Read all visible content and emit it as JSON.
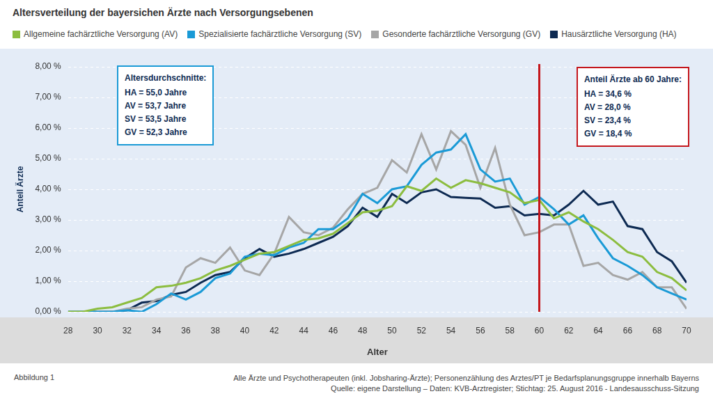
{
  "chart_data": {
    "type": "line",
    "title": "Altersverteilung der bayersichen Ärzte nach Versorgungsebenen",
    "x_label": "Alter",
    "y_label": "Anteil Ärzte",
    "x": [
      28,
      29,
      30,
      31,
      32,
      33,
      34,
      35,
      36,
      37,
      38,
      39,
      40,
      41,
      42,
      43,
      44,
      45,
      46,
      47,
      48,
      49,
      50,
      51,
      52,
      53,
      54,
      55,
      56,
      57,
      58,
      59,
      60,
      61,
      62,
      63,
      64,
      65,
      66,
      67,
      68,
      69,
      70
    ],
    "series": [
      {
        "name": "Allgemeine fachärztliche Versorgung (AV)",
        "color": "#8cbd3f",
        "values": [
          0.0,
          0.0,
          0.1,
          0.15,
          0.3,
          0.45,
          0.8,
          0.85,
          0.95,
          1.1,
          1.35,
          1.5,
          1.7,
          1.9,
          1.95,
          2.15,
          2.35,
          2.4,
          2.55,
          2.9,
          3.25,
          3.3,
          3.45,
          4.1,
          3.95,
          4.35,
          4.05,
          4.3,
          4.2,
          4.05,
          3.9,
          3.55,
          3.65,
          3.05,
          3.25,
          2.95,
          2.7,
          2.35,
          1.95,
          1.8,
          1.3,
          1.1,
          0.7
        ]
      },
      {
        "name": "Spezialisierte fachärztliche Versorgung (SV)",
        "color": "#1a9ad6",
        "values": [
          0.0,
          0.0,
          0.0,
          0.0,
          0.05,
          0.0,
          0.25,
          0.6,
          0.4,
          0.65,
          1.1,
          1.25,
          1.8,
          1.9,
          1.85,
          2.1,
          2.25,
          2.7,
          2.7,
          3.05,
          3.85,
          3.55,
          4.0,
          4.1,
          4.8,
          5.2,
          5.3,
          5.8,
          4.65,
          4.25,
          4.35,
          3.5,
          3.75,
          3.35,
          2.85,
          3.15,
          2.4,
          1.75,
          1.5,
          1.2,
          0.8,
          0.6,
          0.4
        ]
      },
      {
        "name": "Gesonderte fachärztliche Versorgung (GV)",
        "color": "#a6a6a6",
        "values": [
          0.0,
          0.0,
          0.0,
          0.0,
          0.1,
          0.15,
          0.4,
          0.5,
          1.45,
          1.75,
          1.6,
          2.1,
          1.35,
          1.2,
          1.9,
          3.1,
          2.6,
          2.5,
          2.75,
          3.35,
          3.85,
          4.05,
          4.95,
          4.55,
          5.8,
          4.65,
          5.9,
          5.45,
          4.05,
          5.35,
          3.5,
          2.5,
          2.6,
          2.85,
          2.85,
          1.5,
          1.6,
          1.2,
          1.05,
          1.3,
          0.8,
          0.8,
          0.1
        ]
      },
      {
        "name": "Hausärztliche Versorgung (HA)",
        "color": "#0d2a52",
        "values": [
          0.0,
          0.0,
          0.0,
          0.0,
          0.05,
          0.3,
          0.35,
          0.55,
          0.65,
          0.95,
          1.2,
          1.3,
          1.75,
          2.05,
          1.8,
          1.9,
          2.05,
          2.25,
          2.45,
          2.8,
          3.4,
          3.1,
          3.85,
          3.55,
          3.9,
          4.0,
          3.75,
          3.72,
          3.7,
          3.4,
          3.45,
          3.15,
          3.2,
          3.15,
          3.5,
          3.95,
          3.5,
          3.6,
          2.8,
          2.7,
          1.95,
          1.65,
          0.95
        ]
      }
    ],
    "xlim": [
      28,
      70
    ],
    "xticks": [
      28,
      30,
      32,
      34,
      36,
      38,
      40,
      42,
      44,
      46,
      48,
      50,
      52,
      54,
      56,
      58,
      60,
      62,
      64,
      66,
      68,
      70
    ],
    "ylim": [
      0,
      8
    ],
    "yticks": [
      {
        "value": 0,
        "label": "0,00 %"
      },
      {
        "value": 1,
        "label": "1,00 %"
      },
      {
        "value": 2,
        "label": "2,00 %"
      },
      {
        "value": 3,
        "label": "3,00 %"
      },
      {
        "value": 4,
        "label": "4,00 %"
      },
      {
        "value": 5,
        "label": "5,00 %"
      },
      {
        "value": 6,
        "label": "6,00 %"
      },
      {
        "value": 7,
        "label": "7,00 %"
      },
      {
        "value": 8,
        "label": "8,00 %"
      }
    ],
    "grid": true,
    "legend": "top",
    "marker": "none",
    "line_style": "solid",
    "vline": {
      "x": 60,
      "color": "#c4161c"
    },
    "annotations": [
      {
        "title": "Altersdurchschnitte:",
        "color": "#1a9ad6",
        "lines": [
          "HA = 55,0 Jahre",
          "AV = 53,7 Jahre",
          "SV = 53,5 Jahre",
          "GV = 52,3 Jahre"
        ]
      },
      {
        "title": "Anteil Ärzte ab 60 Jahre:",
        "color": "#c4161c",
        "lines": [
          "HA = 34,6 %",
          "AV = 28,0 %",
          "SV = 23,4 %",
          "GV = 18,4 %"
        ]
      }
    ],
    "footer": {
      "left": "Abbildung 1",
      "right": [
        "Alle Ärzte und Psychotherapeuten (inkl. Jobsharing-Ärzte); Personenzählung des Arztes/PT je Bedarfsplanungsgruppe innerhalb Bayerns",
        "Quelle: eigene Darstellung – Daten: KVB-Arztregister; Stichtag: 25. August 2016 - Landesausschuss-Sitzung"
      ]
    }
  }
}
